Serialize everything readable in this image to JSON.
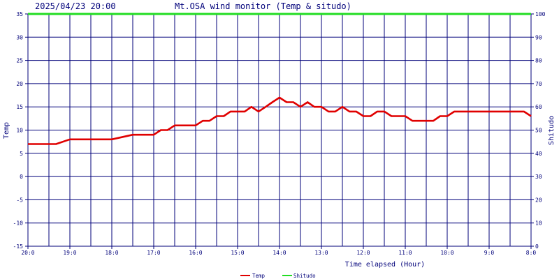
{
  "header": {
    "timestamp": "2025/04/23 20:00",
    "title": "Mt.OSA wind monitor (Temp & situdo)"
  },
  "chart_data": {
    "type": "line",
    "title": "Mt.OSA wind monitor (Temp & situdo)",
    "xlabel": "Time elapsed (Hour)",
    "ylabel": "Temp",
    "y2label": "Shitudo",
    "ylim": [
      -15,
      35
    ],
    "y2lim": [
      0,
      100
    ],
    "xlim": [
      20,
      8
    ],
    "x_ticks": [
      20,
      19,
      18,
      17,
      16,
      15,
      14,
      13,
      12,
      11,
      10,
      9,
      8
    ],
    "x_tick_labels": [
      "20:0",
      "19:0",
      "18:0",
      "17:0",
      "16:0",
      "15:0",
      "14:0",
      "13:0",
      "12:0",
      "11:0",
      "10:0",
      "9:0",
      "8:0"
    ],
    "y_ticks": [
      35,
      30,
      25,
      20,
      15,
      10,
      5,
      0,
      -5,
      -10,
      -15
    ],
    "y_tick_labels": [
      "35",
      "30",
      "25",
      "20",
      "15",
      "10",
      "5",
      "0",
      "-5",
      "-10",
      "-15"
    ],
    "y2_ticks": [
      100,
      90,
      80,
      70,
      60,
      50,
      40,
      30,
      20,
      10,
      0
    ],
    "y2_tick_labels": [
      "100",
      "90",
      "80",
      "70",
      "60",
      "50",
      "40",
      "30",
      "20",
      "10",
      "0"
    ],
    "grid": true,
    "legend_position": "bottom-center",
    "series": [
      {
        "name": "Temp",
        "axis": "left",
        "color": "#e00000",
        "x": [
          20,
          19.5,
          19.33,
          19,
          18.5,
          18.33,
          18,
          17.5,
          17.17,
          17,
          16.83,
          16.67,
          16.5,
          16.17,
          16,
          15.83,
          15.67,
          15.5,
          15.33,
          15.17,
          15,
          14.83,
          14.67,
          14.5,
          14.33,
          14.17,
          14,
          13.83,
          13.67,
          13.5,
          13.33,
          13.17,
          13,
          12.83,
          12.67,
          12.5,
          12.33,
          12.17,
          12,
          11.83,
          11.67,
          11.5,
          11.33,
          11.17,
          11,
          10.83,
          10.67,
          10.5,
          10.33,
          10.17,
          10,
          9.83,
          9.5,
          9,
          8.5,
          8.17,
          8
        ],
        "y": [
          7,
          7,
          7,
          8,
          8,
          8,
          8,
          9,
          9,
          9,
          10,
          10,
          11,
          11,
          11,
          12,
          12,
          13,
          13,
          14,
          14,
          14,
          15,
          14,
          15,
          16,
          17,
          16,
          16,
          15,
          16,
          15,
          15,
          14,
          14,
          15,
          14,
          14,
          13,
          13,
          14,
          14,
          13,
          13,
          13,
          12,
          12,
          12,
          12,
          13,
          13,
          14,
          14,
          14,
          14,
          14,
          13
        ]
      },
      {
        "name": "Shitudo",
        "axis": "right",
        "color": "#22dd22",
        "x": [
          20,
          8
        ],
        "y": [
          100,
          100
        ]
      }
    ]
  }
}
